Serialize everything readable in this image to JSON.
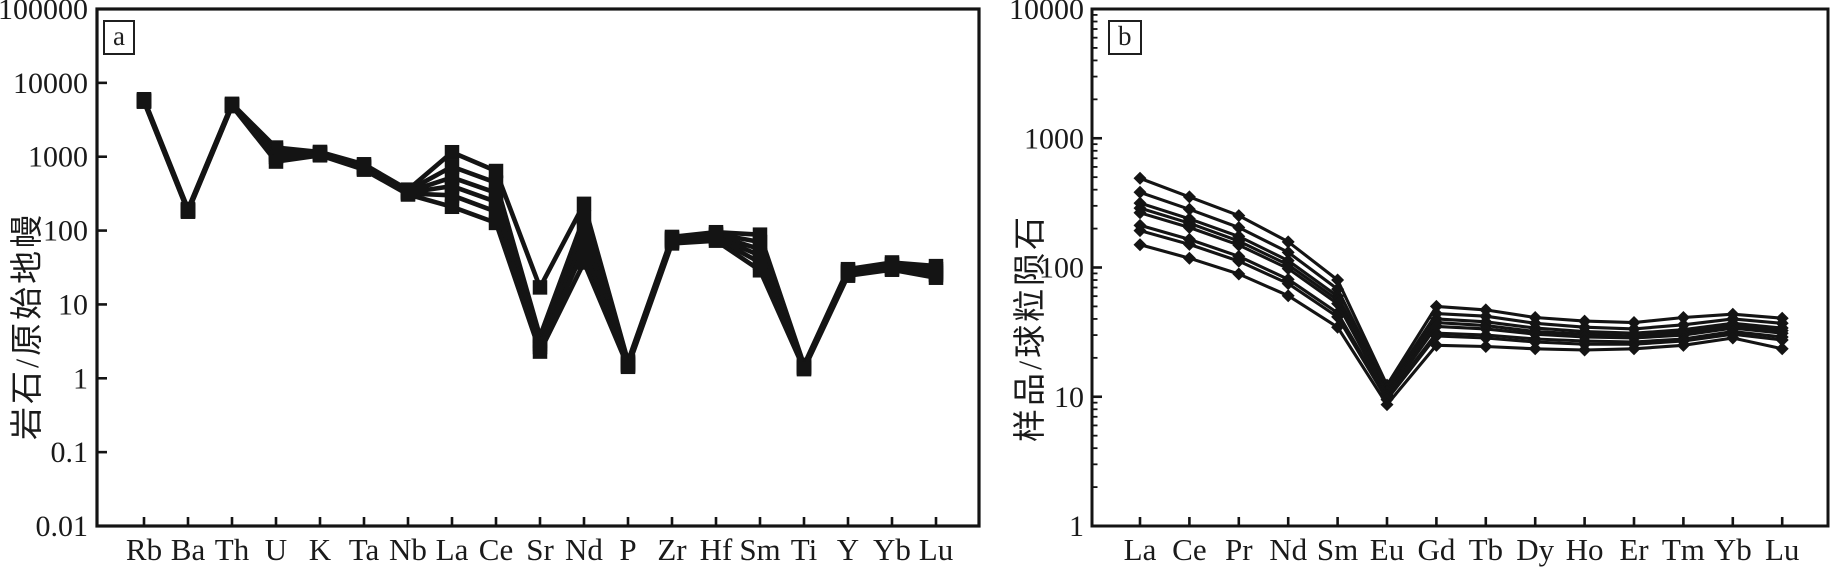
{
  "figure": {
    "background": "#ffffff",
    "ink_color": "#141414"
  },
  "chart_data": [
    {
      "type": "line",
      "panel_label": "a",
      "ylabel": "岩石/原始地幔",
      "yscale": "log",
      "ylim": [
        0.01,
        100000
      ],
      "ytick_labels": [
        "100000",
        "10000",
        "1000",
        "100",
        "10",
        "1",
        "0.1",
        "0.01"
      ],
      "minor_ticks": false,
      "grid": false,
      "legend": "none",
      "marker": "square",
      "categories": [
        "Rb",
        "Ba",
        "Th",
        "U",
        "K",
        "Ta",
        "Nb",
        "La",
        "Ce",
        "Sr",
        "Nd",
        "P",
        "Zr",
        "Hf",
        "Sm",
        "Ti",
        "Y",
        "Yb",
        "Lu"
      ],
      "series": [
        {
          "values": [
            6000,
            196,
            5200,
            1330,
            1160,
            790,
            358,
            1150,
            640,
            17,
            230,
            1.7,
            82,
            95,
            88,
            1.52,
            30,
            37,
            33
          ]
        },
        {
          "values": [
            5850,
            192,
            5080,
            1240,
            1130,
            755,
            345,
            735,
            445,
            3.7,
            150,
            1.64,
            79,
            90,
            70,
            1.47,
            28.5,
            35,
            30
          ]
        },
        {
          "values": [
            5750,
            189,
            5000,
            1150,
            1105,
            730,
            335,
            525,
            325,
            3.2,
            104,
            1.58,
            76,
            86,
            56,
            1.43,
            27.5,
            33.5,
            28
          ]
        },
        {
          "values": [
            5680,
            186,
            4940,
            1070,
            1085,
            710,
            327,
            400,
            245,
            2.9,
            76,
            1.53,
            73.5,
            82,
            46,
            1.4,
            26.5,
            32,
            26.5
          ]
        },
        {
          "values": [
            5620,
            183,
            4890,
            990,
            1065,
            690,
            318,
            300,
            180,
            2.65,
            55,
            1.48,
            71,
            78,
            37,
            1.37,
            25.5,
            30.5,
            25
          ]
        },
        {
          "values": [
            5560,
            180,
            4840,
            860,
            1045,
            668,
            308,
            210,
            127,
            2.3,
            37,
            1.43,
            67,
            73,
            29,
            1.33,
            24.5,
            29.5,
            23
          ]
        }
      ]
    },
    {
      "type": "line",
      "panel_label": "b",
      "ylabel": "样品/球粒陨石",
      "yscale": "log",
      "ylim": [
        1,
        10000
      ],
      "ytick_labels": [
        "10000",
        "1000",
        "100",
        "10",
        "1"
      ],
      "minor_ticks": true,
      "grid": false,
      "legend": "none",
      "marker": "diamond",
      "categories": [
        "La",
        "Ce",
        "Pr",
        "Nd",
        "Sm",
        "Eu",
        "Gd",
        "Tb",
        "Dy",
        "Ho",
        "Er",
        "Tm",
        "Yb",
        "Lu"
      ],
      "series": [
        {
          "values": [
            490,
            352,
            252,
            158,
            80,
            12.3,
            50,
            47,
            41,
            38.5,
            37.5,
            41,
            43.5,
            40.5
          ]
        },
        {
          "values": [
            382,
            282,
            204,
            131,
            68,
            11.5,
            44,
            42,
            37,
            34.5,
            33.5,
            36,
            40,
            37
          ]
        },
        {
          "values": [
            315,
            238,
            174,
            113,
            60,
            10.9,
            40,
            38,
            34,
            32,
            31,
            33,
            37,
            34
          ]
        },
        {
          "values": [
            288,
            220,
            160,
            105,
            56,
            10.6,
            37.5,
            35.5,
            32,
            30.5,
            29.5,
            31.5,
            35.5,
            32.5
          ]
        },
        {
          "values": [
            265,
            204,
            149,
            98,
            52.5,
            10.3,
            35,
            33.5,
            30.5,
            29,
            28.5,
            30,
            34,
            31
          ]
        },
        {
          "values": [
            212,
            165,
            122,
            81,
            44.5,
            9.8,
            31,
            30,
            28,
            27,
            26.5,
            28,
            32,
            29
          ]
        },
        {
          "values": [
            193,
            151,
            112,
            75,
            41.5,
            9.5,
            29.5,
            28.5,
            26.5,
            25.5,
            25.5,
            27,
            30.5,
            27.5
          ]
        },
        {
          "values": [
            150,
            118,
            89,
            60.5,
            34.5,
            8.7,
            25,
            24.5,
            23.5,
            23,
            23.5,
            25,
            28.5,
            23.5
          ]
        }
      ]
    }
  ]
}
